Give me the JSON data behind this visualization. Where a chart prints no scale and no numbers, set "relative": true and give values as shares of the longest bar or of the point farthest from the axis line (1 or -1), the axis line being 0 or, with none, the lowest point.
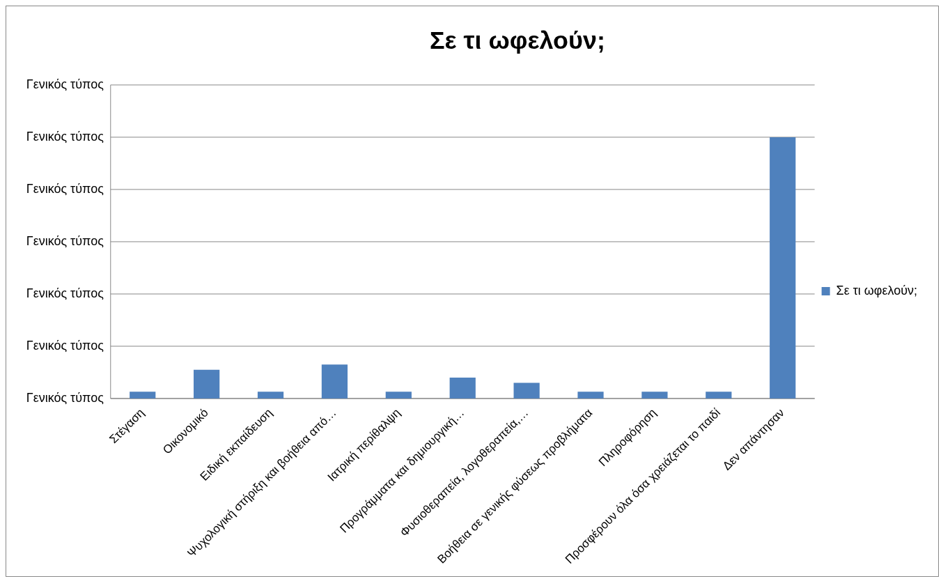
{
  "chart_data": {
    "type": "bar",
    "title": "Σε τι ωφελούν;",
    "relative": true,
    "categories": [
      "Στέγαση",
      "Οικονομικό",
      "Ειδική εκπαίδευση",
      "Ψυχολογική στήριξη και βοήθεια από…",
      "Ιατρική περίθαλψη",
      "Προγράμματα και δημιουργική…",
      "Φυσιοθεραπεία, λογοθεραπεία,…",
      "Βοήθεια σε γενικής φύσεως προβλήματα",
      "Πληροφόρηση",
      "Προσφέρουν όλα όσα χρειάζεται το παιδί",
      "Δεν απάντησαν"
    ],
    "series": [
      {
        "name": "Σε τι ωφελούν;",
        "color": "#4f81bd",
        "values": [
          0.026,
          0.11,
          0.026,
          0.13,
          0.026,
          0.08,
          0.06,
          0.026,
          0.026,
          0.026,
          1
        ]
      }
    ],
    "annotations": [
      "Γενικός τύπος",
      "Γενικός τύπος",
      "Γενικός τύπος",
      "Γενικός τύπος",
      "Γενικός τύπος",
      "Γενικός τύπος",
      "Γενικός τύπος"
    ],
    "grid": "y",
    "legend": "right"
  }
}
